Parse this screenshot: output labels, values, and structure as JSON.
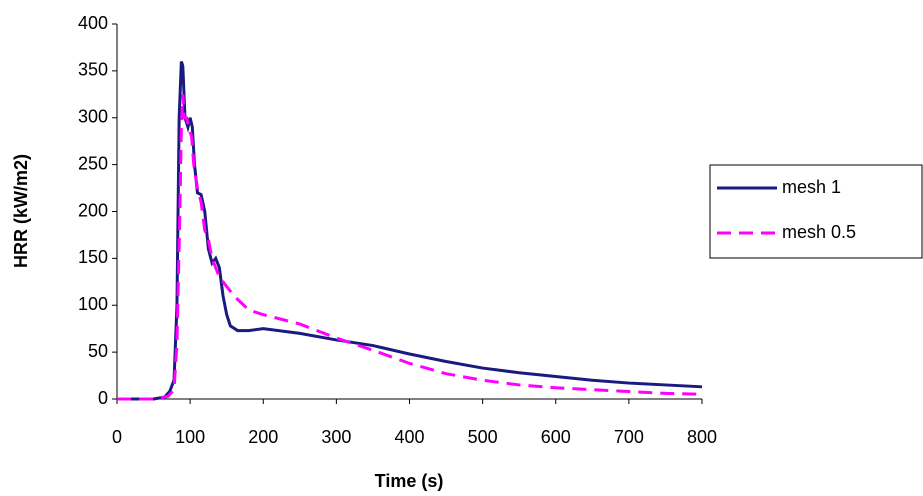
{
  "chart_data": {
    "type": "line",
    "x_label": "Time (s)",
    "y_label": "HRR (kW/m2)",
    "xlim": [
      0,
      800
    ],
    "xticks": [
      0,
      100,
      200,
      300,
      400,
      500,
      600,
      700,
      800
    ],
    "ylim": [
      0,
      400
    ],
    "yticks": [
      0,
      50,
      100,
      150,
      200,
      250,
      300,
      350,
      400
    ],
    "grid": false,
    "legend": "right",
    "series": [
      {
        "name": "mesh 1",
        "color": "#1a1a80",
        "dashed": false,
        "x": [
          0,
          50,
          65,
          72,
          78,
          82,
          85,
          88,
          90,
          93,
          97,
          100,
          103,
          106,
          110,
          115,
          120,
          125,
          130,
          135,
          140,
          145,
          150,
          155,
          165,
          180,
          200,
          250,
          300,
          350,
          400,
          450,
          500,
          550,
          600,
          650,
          700,
          750,
          800
        ],
        "values": [
          0,
          0,
          2,
          8,
          20,
          100,
          300,
          360,
          355,
          300,
          290,
          300,
          290,
          250,
          220,
          218,
          200,
          160,
          145,
          150,
          140,
          110,
          90,
          78,
          73,
          73,
          75,
          70,
          63,
          57,
          48,
          40,
          33,
          28,
          24,
          20,
          17,
          15,
          13
        ]
      },
      {
        "name": "mesh 0.5",
        "color": "#ff00ff",
        "dashed": true,
        "x": [
          0,
          50,
          70,
          78,
          82,
          86,
          88,
          90,
          92,
          95,
          98,
          102,
          105,
          110,
          115,
          120,
          125,
          130,
          135,
          140,
          145,
          150,
          160,
          180,
          200,
          250,
          300,
          350,
          400,
          450,
          500,
          550,
          600,
          650,
          700,
          750,
          800
        ],
        "values": [
          0,
          0,
          3,
          10,
          60,
          200,
          290,
          325,
          300,
          300,
          290,
          280,
          250,
          225,
          210,
          180,
          170,
          150,
          140,
          130,
          125,
          120,
          110,
          95,
          90,
          80,
          65,
          52,
          38,
          27,
          20,
          15,
          12,
          10,
          8,
          6,
          5
        ]
      }
    ]
  }
}
